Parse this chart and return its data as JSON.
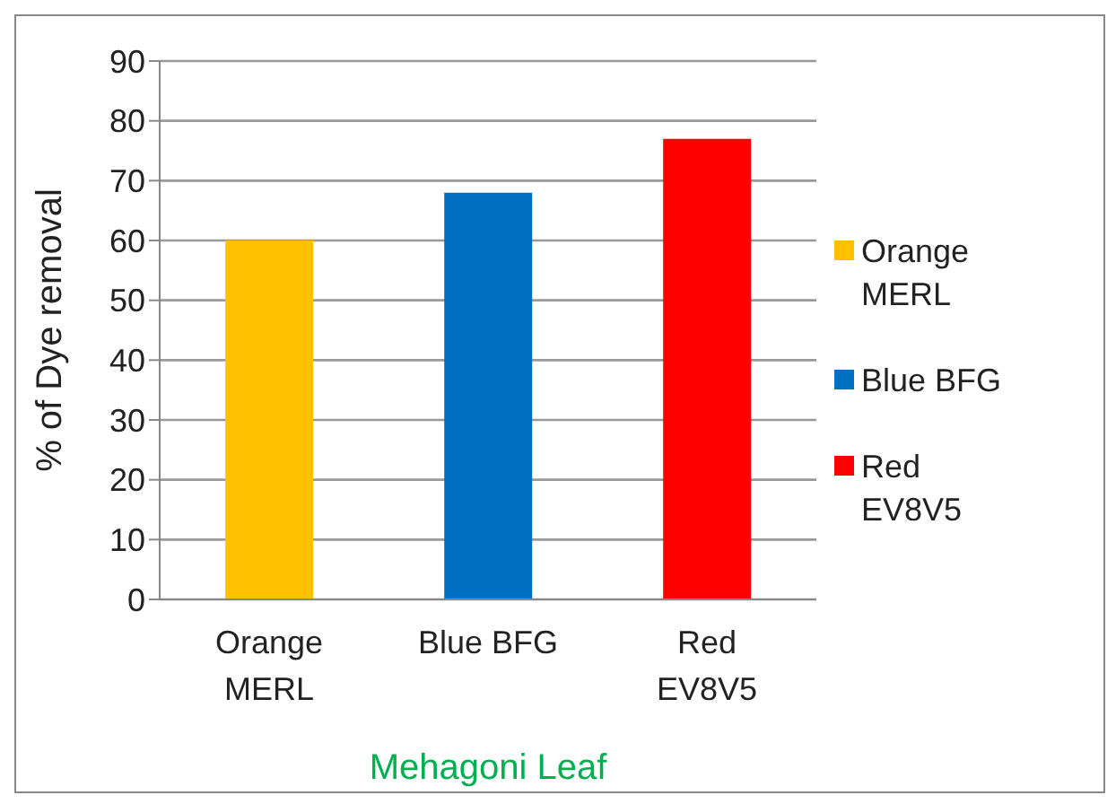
{
  "chart_data": {
    "type": "bar",
    "xlabel": "Mehagoni Leaf",
    "ylabel": "% of Dye removal",
    "categories": [
      "Orange MERL",
      "Blue BFG",
      "Red EV8V5"
    ],
    "series": [
      {
        "name": "Orange MERL",
        "color": "#ffc000",
        "values": [
          60,
          null,
          null
        ]
      },
      {
        "name": "Blue BFG",
        "color": "#0070c0",
        "values": [
          null,
          68,
          null
        ]
      },
      {
        "name": "Red EV8V5",
        "color": "#ff0000",
        "values": [
          null,
          null,
          77
        ]
      }
    ],
    "ylim": [
      0,
      90
    ],
    "yticks": [
      0,
      10,
      20,
      30,
      40,
      50,
      60,
      70,
      80,
      90
    ],
    "grid": "y",
    "legend": "right"
  }
}
